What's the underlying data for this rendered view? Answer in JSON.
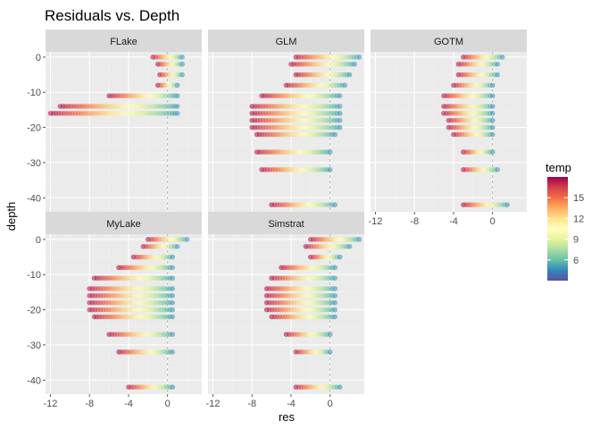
{
  "chart_data": {
    "type": "scatter",
    "title": "Residuals vs. Depth",
    "xlabel": "res",
    "ylabel": "depth",
    "xlim": [
      -12.5,
      3.5
    ],
    "ylim": [
      -44,
      1.5
    ],
    "x_ticks": [
      -12,
      -8,
      -4,
      0
    ],
    "x_tick_labels": [
      "-12",
      "-8",
      "-4",
      "0"
    ],
    "y_ticks": [
      0,
      -10,
      -20,
      -30,
      -40
    ],
    "y_tick_labels": [
      "0",
      "-10",
      "-20",
      "-30",
      "-40"
    ],
    "reference_line": 0,
    "grid": true,
    "facet_layout": "2 rows x 3 columns",
    "legend": {
      "title": "temp",
      "position": "right",
      "ticks": [
        6,
        9,
        12,
        15
      ],
      "tick_labels": [
        "6",
        "9",
        "12",
        "15"
      ],
      "range": [
        3,
        18
      ],
      "palette": [
        "#5E4FA2",
        "#3288BD",
        "#66C2A5",
        "#ABDDA4",
        "#E6F598",
        "#FFFFBF",
        "#FEE08B",
        "#FDAE61",
        "#F46D43",
        "#D53E4F",
        "#9E0142"
      ]
    },
    "facets": [
      {
        "name": "FLake",
        "rows": [
          {
            "depth": 0,
            "min": -1.5,
            "max": 1.5
          },
          {
            "depth": -2,
            "min": -1.0,
            "max": 1.5
          },
          {
            "depth": -5,
            "min": -0.8,
            "max": 1.5
          },
          {
            "depth": -8,
            "min": -1.0,
            "max": 1.0
          },
          {
            "depth": -11,
            "min": -6.0,
            "max": 1.0
          },
          {
            "depth": -14,
            "min": -11.0,
            "max": 1.0
          },
          {
            "depth": -16,
            "min": -12.0,
            "max": 1.0
          }
        ]
      },
      {
        "name": "GLM",
        "rows": [
          {
            "depth": 0,
            "min": -3.5,
            "max": 3.0
          },
          {
            "depth": -2,
            "min": -4.0,
            "max": 2.5
          },
          {
            "depth": -5,
            "min": -3.5,
            "max": 2.0
          },
          {
            "depth": -8,
            "min": -4.5,
            "max": 1.5
          },
          {
            "depth": -11,
            "min": -7.0,
            "max": 1.0
          },
          {
            "depth": -14,
            "min": -8.0,
            "max": 1.0
          },
          {
            "depth": -16,
            "min": -8.0,
            "max": 1.0
          },
          {
            "depth": -18,
            "min": -8.0,
            "max": 1.0
          },
          {
            "depth": -20,
            "min": -8.0,
            "max": 1.0
          },
          {
            "depth": -22,
            "min": -7.5,
            "max": 0.5
          },
          {
            "depth": -27,
            "min": -7.5,
            "max": 0.0
          },
          {
            "depth": -32,
            "min": -7.0,
            "max": 0.0
          },
          {
            "depth": -42,
            "min": -6.0,
            "max": 0.5
          }
        ]
      },
      {
        "name": "GOTM",
        "rows": [
          {
            "depth": 0,
            "min": -3.0,
            "max": 1.0
          },
          {
            "depth": -2,
            "min": -3.5,
            "max": 0.5
          },
          {
            "depth": -5,
            "min": -3.5,
            "max": 0.5
          },
          {
            "depth": -8,
            "min": -4.0,
            "max": 0.0
          },
          {
            "depth": -11,
            "min": -5.0,
            "max": 0.0
          },
          {
            "depth": -14,
            "min": -5.0,
            "max": 0.0
          },
          {
            "depth": -16,
            "min": -5.0,
            "max": 0.0
          },
          {
            "depth": -18,
            "min": -4.5,
            "max": 0.0
          },
          {
            "depth": -20,
            "min": -4.5,
            "max": 0.0
          },
          {
            "depth": -22,
            "min": -4.0,
            "max": 0.0
          },
          {
            "depth": -27,
            "min": -3.0,
            "max": 0.0
          },
          {
            "depth": -32,
            "min": -3.0,
            "max": 0.5
          },
          {
            "depth": -42,
            "min": -3.0,
            "max": 1.5
          }
        ]
      },
      {
        "name": "MyLake",
        "rows": [
          {
            "depth": 0,
            "min": -2.0,
            "max": 2.0
          },
          {
            "depth": -2,
            "min": -2.5,
            "max": 1.0
          },
          {
            "depth": -5,
            "min": -3.5,
            "max": 0.5
          },
          {
            "depth": -8,
            "min": -5.0,
            "max": 0.5
          },
          {
            "depth": -11,
            "min": -7.5,
            "max": 0.5
          },
          {
            "depth": -14,
            "min": -8.0,
            "max": 0.5
          },
          {
            "depth": -16,
            "min": -8.0,
            "max": 0.5
          },
          {
            "depth": -18,
            "min": -8.0,
            "max": 0.5
          },
          {
            "depth": -20,
            "min": -8.0,
            "max": 0.5
          },
          {
            "depth": -22,
            "min": -7.5,
            "max": 0.5
          },
          {
            "depth": -27,
            "min": -6.0,
            "max": 0.5
          },
          {
            "depth": -32,
            "min": -5.0,
            "max": 0.5
          },
          {
            "depth": -42,
            "min": -4.0,
            "max": 0.5
          }
        ]
      },
      {
        "name": "Simstrat",
        "rows": [
          {
            "depth": 0,
            "min": -2.0,
            "max": 3.0
          },
          {
            "depth": -2,
            "min": -2.5,
            "max": 2.0
          },
          {
            "depth": -5,
            "min": -2.0,
            "max": 1.0
          },
          {
            "depth": -8,
            "min": -5.0,
            "max": 0.5
          },
          {
            "depth": -11,
            "min": -6.0,
            "max": 0.5
          },
          {
            "depth": -14,
            "min": -6.5,
            "max": 0.5
          },
          {
            "depth": -16,
            "min": -6.5,
            "max": 0.5
          },
          {
            "depth": -18,
            "min": -6.5,
            "max": 0.5
          },
          {
            "depth": -20,
            "min": -6.5,
            "max": 0.5
          },
          {
            "depth": -22,
            "min": -6.0,
            "max": 0.5
          },
          {
            "depth": -27,
            "min": -4.5,
            "max": 0.0
          },
          {
            "depth": -32,
            "min": -3.5,
            "max": 0.0
          },
          {
            "depth": -42,
            "min": -3.5,
            "max": 1.0
          }
        ]
      }
    ]
  }
}
